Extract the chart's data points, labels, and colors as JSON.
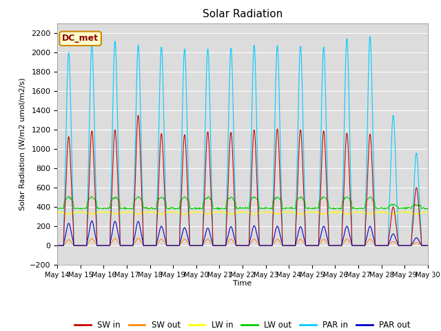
{
  "title": "Solar Radiation",
  "ylabel": "Solar Radiation (W/m2 umol/m2/s)",
  "xlabel": "Time",
  "ylim": [
    -200,
    2300
  ],
  "yticks": [
    -200,
    0,
    200,
    400,
    600,
    800,
    1000,
    1200,
    1400,
    1600,
    1800,
    2000,
    2200
  ],
  "fig_bg": "#ffffff",
  "plot_bg": "#dcdcdc",
  "legend_label": "DC_met",
  "legend_entries": [
    "SW in",
    "SW out",
    "LW in",
    "LW out",
    "PAR in",
    "PAR out"
  ],
  "line_colors": [
    "#cc0000",
    "#ff8800",
    "#ffff00",
    "#00cc00",
    "#00ccff",
    "#0000cc"
  ],
  "n_days": 16,
  "start_day": 14
}
